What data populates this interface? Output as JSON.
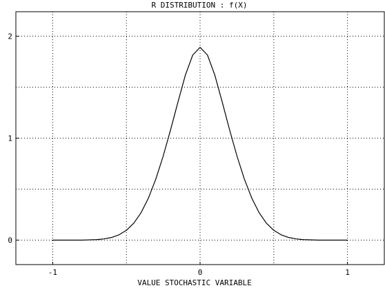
{
  "chart_data": {
    "type": "line",
    "title": "R DISTRIBUTION : f(X)",
    "xlabel": "VALUE STOCHASTIC VARIABLE",
    "ylabel": "",
    "xlim": [
      -1.25,
      1.25
    ],
    "ylim": [
      -0.24,
      2.24
    ],
    "x_ticks": [
      -1,
      0,
      1
    ],
    "x_tick_labels": [
      "-1",
      "0",
      "1"
    ],
    "y_ticks": [
      0,
      1,
      2
    ],
    "y_tick_labels": [
      "0",
      "1",
      "2"
    ],
    "grid": true,
    "grid_style": "dotted",
    "x_gridlines": [
      -1,
      -0.5,
      0,
      0.5,
      1
    ],
    "y_gridlines": [
      0,
      0.5,
      1,
      1.5,
      2
    ],
    "series": [
      {
        "color": "#000000",
        "x": [
          -1.0,
          -0.9,
          -0.8,
          -0.7,
          -0.65,
          -0.6,
          -0.55,
          -0.5,
          -0.45,
          -0.4,
          -0.35,
          -0.3,
          -0.25,
          -0.2,
          -0.15,
          -0.1,
          -0.05,
          0.0,
          0.05,
          0.1,
          0.15,
          0.2,
          0.25,
          0.3,
          0.35,
          0.4,
          0.45,
          0.5,
          0.55,
          0.6,
          0.65,
          0.7,
          0.8,
          0.9,
          1.0
        ],
        "y": [
          0.0,
          0.0,
          0.0,
          0.005,
          0.012,
          0.026,
          0.052,
          0.096,
          0.166,
          0.27,
          0.414,
          0.6,
          0.826,
          1.083,
          1.355,
          1.618,
          1.815,
          1.89,
          1.815,
          1.618,
          1.355,
          1.083,
          0.826,
          0.6,
          0.414,
          0.27,
          0.166,
          0.096,
          0.052,
          0.026,
          0.012,
          0.005,
          0.0,
          0.0,
          0.0
        ]
      }
    ]
  }
}
